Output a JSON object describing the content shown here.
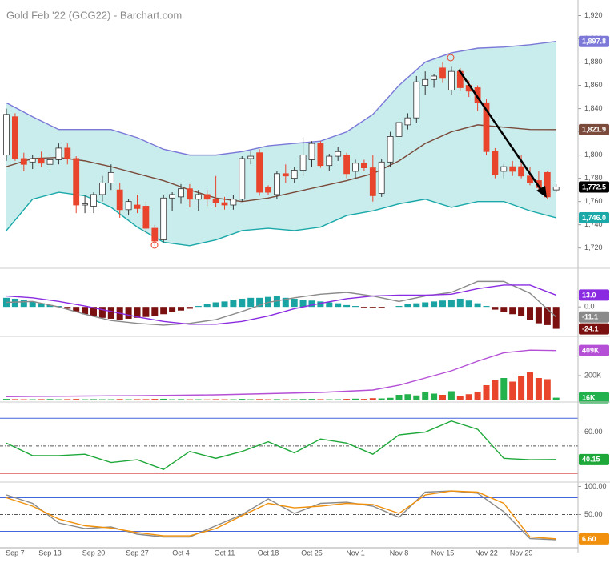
{
  "chart_data": [
    {
      "type": "candlestick",
      "title": "Gold Feb '22 (GCG22) - Barchart.com",
      "categories": [
        null,
        "Sep 7",
        null,
        null,
        null,
        "Sep 13",
        null,
        null,
        null,
        null,
        "Sep 20",
        null,
        null,
        null,
        null,
        "Sep 27",
        null,
        null,
        null,
        null,
        "Oct 4",
        null,
        null,
        null,
        null,
        "Oct 11",
        null,
        null,
        null,
        null,
        "Oct 18",
        null,
        null,
        null,
        null,
        "Oct 25",
        null,
        null,
        null,
        null,
        "Nov 1",
        null,
        null,
        null,
        null,
        "Nov 8",
        null,
        null,
        null,
        null,
        "Nov 15",
        null,
        null,
        null,
        null,
        "Nov 22",
        null,
        null,
        null,
        "Nov 29",
        null,
        null,
        null,
        null
      ],
      "candles": [
        [
          1800,
          1840,
          1795,
          1835
        ],
        [
          1833,
          1836,
          1795,
          1797
        ],
        [
          1797,
          1802,
          1786,
          1792
        ],
        [
          1794,
          1800,
          1788,
          1797
        ],
        [
          1797,
          1803,
          1790,
          1793
        ],
        [
          1792,
          1800,
          1786,
          1796
        ],
        [
          1796,
          1810,
          1792,
          1806
        ],
        [
          1806,
          1810,
          1792,
          1797
        ],
        [
          1797,
          1799,
          1750,
          1757
        ],
        [
          1757,
          1765,
          1750,
          1758
        ],
        [
          1756,
          1768,
          1750,
          1766
        ],
        [
          1766,
          1782,
          1760,
          1776
        ],
        [
          1776,
          1792,
          1770,
          1785
        ],
        [
          1770,
          1776,
          1746,
          1753
        ],
        [
          1753,
          1762,
          1748,
          1760
        ],
        [
          1757,
          1766,
          1750,
          1754
        ],
        [
          1756,
          1760,
          1732,
          1737
        ],
        [
          1737,
          1740,
          1722,
          1726
        ],
        [
          1727,
          1766,
          1725,
          1763
        ],
        [
          1763,
          1768,
          1752,
          1766
        ],
        [
          1764,
          1775,
          1758,
          1771
        ],
        [
          1771,
          1775,
          1755,
          1762
        ],
        [
          1762,
          1770,
          1752,
          1766
        ],
        [
          1766,
          1770,
          1756,
          1762
        ],
        [
          1762,
          1782,
          1755,
          1759
        ],
        [
          1759,
          1764,
          1753,
          1757
        ],
        [
          1757,
          1766,
          1753,
          1762
        ],
        [
          1762,
          1799,
          1760,
          1797
        ],
        [
          1797,
          1803,
          1792,
          1799
        ],
        [
          1802,
          1805,
          1765,
          1768
        ],
        [
          1772,
          1774,
          1766,
          1768
        ],
        [
          1766,
          1786,
          1762,
          1784
        ],
        [
          1784,
          1792,
          1776,
          1782
        ],
        [
          1780,
          1790,
          1776,
          1787
        ],
        [
          1787,
          1815,
          1782,
          1800
        ],
        [
          1796,
          1812,
          1790,
          1810
        ],
        [
          1810,
          1812,
          1789,
          1791
        ],
        [
          1791,
          1801,
          1786,
          1799
        ],
        [
          1799,
          1807,
          1795,
          1803
        ],
        [
          1800,
          1802,
          1780,
          1784
        ],
        [
          1786,
          1796,
          1780,
          1793
        ],
        [
          1793,
          1796,
          1786,
          1789
        ],
        [
          1789,
          1800,
          1760,
          1765
        ],
        [
          1767,
          1797,
          1764,
          1794
        ],
        [
          1794,
          1820,
          1790,
          1816
        ],
        [
          1816,
          1832,
          1812,
          1828
        ],
        [
          1826,
          1836,
          1822,
          1832
        ],
        [
          1832,
          1868,
          1828,
          1863
        ],
        [
          1860,
          1872,
          1852,
          1865
        ],
        [
          1865,
          1870,
          1858,
          1868
        ],
        [
          1875,
          1880,
          1862,
          1866
        ],
        [
          1856,
          1876,
          1852,
          1872
        ],
        [
          1872,
          1875,
          1855,
          1858
        ],
        [
          1860,
          1864,
          1850,
          1855
        ],
        [
          1858,
          1860,
          1838,
          1845
        ],
        [
          1845,
          1848,
          1800,
          1803
        ],
        [
          1803,
          1806,
          1780,
          1783
        ],
        [
          1786,
          1792,
          1780,
          1790
        ],
        [
          1790,
          1795,
          1782,
          1786
        ],
        [
          1790,
          1800,
          1780,
          1782
        ],
        [
          1782,
          1790,
          1774,
          1776
        ],
        [
          1778,
          1786,
          1770,
          1772
        ],
        [
          1785,
          1786,
          1762,
          1764
        ],
        [
          1770,
          1775,
          1768,
          1772.5
        ]
      ],
      "close_label": "1,772.5",
      "up_color": "#ffffff",
      "down_color": "#e8452c",
      "band_color": "#c9ecec",
      "x": [
        0,
        3,
        6,
        9,
        12,
        15,
        18,
        21,
        24,
        27,
        30,
        33,
        36,
        39,
        42,
        45,
        48,
        51,
        54,
        57,
        60,
        63
      ],
      "series": [
        {
          "color": "#7b78d8",
          "end_label": "1,897.8",
          "values": [
            1845,
            1833,
            1822,
            1822,
            1822,
            1815,
            1805,
            1800,
            1800,
            1803,
            1808,
            1810,
            1812,
            1820,
            1835,
            1860,
            1880,
            1888,
            1892,
            1893,
            1895,
            1897.8
          ]
        },
        {
          "color": "#7a4a3a",
          "end_label": "1,821.9",
          "values": [
            1790,
            1797,
            1798,
            1795,
            1790,
            1784,
            1778,
            1770,
            1763,
            1760,
            1763,
            1768,
            1773,
            1778,
            1784,
            1795,
            1810,
            1820,
            1826,
            1824,
            1822,
            1821.9
          ]
        },
        {
          "color": "#1aa8a8",
          "end_label": "1,746.0",
          "values": [
            1735,
            1762,
            1768,
            1765,
            1755,
            1738,
            1725,
            1722,
            1727,
            1735,
            1737,
            1735,
            1738,
            1748,
            1752,
            1758,
            1762,
            1755,
            1760,
            1760,
            1752,
            1746
          ]
        }
      ],
      "ylim": [
        1706,
        1930
      ],
      "yticks": [
        {
          "value": 1720,
          "label": "1,720"
        },
        {
          "value": 1740,
          "label": "1,740"
        },
        {
          "value": 1760,
          "label": "1,760"
        },
        {
          "value": 1780,
          "label": "1,780"
        },
        {
          "value": 1800,
          "label": "1,800"
        },
        {
          "value": 1820,
          "label": "1,820"
        },
        {
          "value": 1840,
          "label": "1,840"
        },
        {
          "value": 1860,
          "label": "1,860"
        },
        {
          "value": 1880,
          "label": "1,880"
        },
        {
          "value": 1900,
          "label": "1,900"
        },
        {
          "value": 1920,
          "label": "1,920"
        }
      ]
    },
    {
      "type": "macd",
      "ylim": [
        -28,
        38
      ],
      "yticks": [
        {
          "value": 0,
          "label": "0.0"
        }
      ],
      "histogram": {
        "up_color": "#1aa3a3",
        "down_color": "#7a1010",
        "end_label": "-24.1",
        "values": [
          10,
          9,
          8,
          6,
          4,
          2,
          1,
          -2,
          -5,
          -8,
          -10,
          -12,
          -13,
          -14,
          -13,
          -12,
          -11,
          -10,
          -8,
          -6,
          -4,
          -2,
          1,
          3,
          5,
          6,
          8,
          9,
          10,
          10,
          11,
          12,
          10,
          9,
          8,
          7,
          6,
          5,
          4,
          2,
          1,
          -1,
          -1,
          -1,
          0,
          1,
          3,
          4,
          5,
          6,
          7,
          8,
          9,
          7,
          4,
          1,
          -3,
          -6,
          -8,
          -10,
          -14,
          -18,
          -20,
          -24.1
        ]
      },
      "x": [
        0,
        3,
        6,
        9,
        12,
        15,
        18,
        21,
        24,
        27,
        30,
        33,
        36,
        39,
        42,
        45,
        48,
        51,
        54,
        57,
        60,
        63
      ],
      "series": [
        {
          "color": "#8a8a8a",
          "end_label": "-11.1",
          "values": [
            5,
            6,
            0,
            -8,
            -15,
            -18,
            -20,
            -18,
            -14,
            -5,
            5,
            10,
            14,
            16,
            12,
            6,
            12,
            16,
            28,
            28,
            15,
            -11.1
          ]
        },
        {
          "color": "#8a2be2",
          "end_label": "13.0",
          "values": [
            12,
            10,
            6,
            1,
            -5,
            -11,
            -16,
            -19,
            -19,
            -16,
            -10,
            -2,
            4,
            9,
            12,
            13,
            13,
            14,
            20,
            24,
            24,
            13
          ]
        }
      ]
    },
    {
      "type": "volume",
      "ylim": [
        0,
        500000
      ],
      "yticks": [
        {
          "value": 200000,
          "label": "200K"
        }
      ],
      "volume": {
        "up_color": "#22b14c",
        "down_color": "#e8452c",
        "end_label": "16K",
        "values": [
          6000,
          4000,
          3000,
          3000,
          4000,
          5000,
          3000,
          4000,
          6000,
          3000,
          4000,
          3000,
          3000,
          5000,
          3000,
          4000,
          4000,
          6000,
          7000,
          3000,
          4000,
          3000,
          3000,
          2000,
          4000,
          3000,
          3000,
          6000,
          3000,
          5000,
          3000,
          4000,
          3000,
          3000,
          5000,
          6000,
          4000,
          3000,
          3000,
          6000,
          8000,
          6000,
          12000,
          10000,
          15000,
          40000,
          45000,
          35000,
          60000,
          50000,
          40000,
          70000,
          30000,
          45000,
          65000,
          120000,
          160000,
          180000,
          150000,
          200000,
          230000,
          180000,
          170000,
          16000
        ]
      },
      "x": [
        0,
        3,
        6,
        9,
        12,
        15,
        18,
        21,
        24,
        27,
        30,
        33,
        36,
        39,
        42,
        45,
        48,
        51,
        54,
        57,
        60,
        63
      ],
      "series": [
        {
          "color": "#b44fd6",
          "end_label": "409K",
          "values": [
            25000,
            27000,
            28000,
            30000,
            32000,
            33000,
            35000,
            38000,
            40000,
            45000,
            50000,
            55000,
            60000,
            70000,
            80000,
            120000,
            180000,
            240000,
            320000,
            390000,
            412000,
            409000
          ]
        }
      ]
    },
    {
      "type": "line",
      "ylim": [
        25,
        80
      ],
      "yticks": [
        {
          "value": 60,
          "label": "60.00"
        }
      ],
      "hlines": [
        {
          "value": 70,
          "color": "#4466dd"
        },
        {
          "value": 30,
          "color": "#e07070"
        },
        {
          "value": 50,
          "color": "#555555",
          "dash": true
        }
      ],
      "x": [
        0,
        3,
        6,
        9,
        12,
        15,
        18,
        21,
        24,
        27,
        30,
        33,
        36,
        39,
        42,
        45,
        48,
        51,
        54,
        57,
        60,
        63
      ],
      "series": [
        {
          "color": "#1fa83a",
          "end_label": "40.15",
          "values": [
            52,
            43,
            43,
            44,
            38,
            40,
            33,
            46,
            41,
            46,
            53,
            45,
            55,
            52,
            44,
            58,
            60,
            68,
            62,
            41,
            40,
            40.15
          ]
        }
      ]
    },
    {
      "type": "line",
      "ylim": [
        -15,
        105
      ],
      "yticks": [
        {
          "value": 100,
          "label": "100.00"
        },
        {
          "value": 50,
          "label": "50.00"
        }
      ],
      "hlines": [
        {
          "value": 80,
          "color": "#4466dd"
        },
        {
          "value": 20,
          "color": "#4466dd"
        },
        {
          "value": 50,
          "color": "#555555",
          "dash": true
        }
      ],
      "x": [
        0,
        3,
        6,
        9,
        12,
        15,
        18,
        21,
        24,
        27,
        30,
        33,
        36,
        39,
        42,
        45,
        48,
        51,
        54,
        57,
        60,
        63
      ],
      "series": [
        {
          "color": "#8a8a8a",
          "values": [
            85,
            70,
            35,
            25,
            28,
            15,
            10,
            10,
            30,
            50,
            78,
            52,
            70,
            72,
            65,
            45,
            90,
            92,
            88,
            55,
            7,
            5
          ]
        },
        {
          "color": "#f0900c",
          "end_label": "6.60",
          "values": [
            80,
            65,
            42,
            30,
            26,
            18,
            12,
            12,
            25,
            48,
            70,
            62,
            65,
            70,
            68,
            52,
            85,
            92,
            90,
            70,
            10,
            6.6
          ]
        }
      ]
    }
  ]
}
